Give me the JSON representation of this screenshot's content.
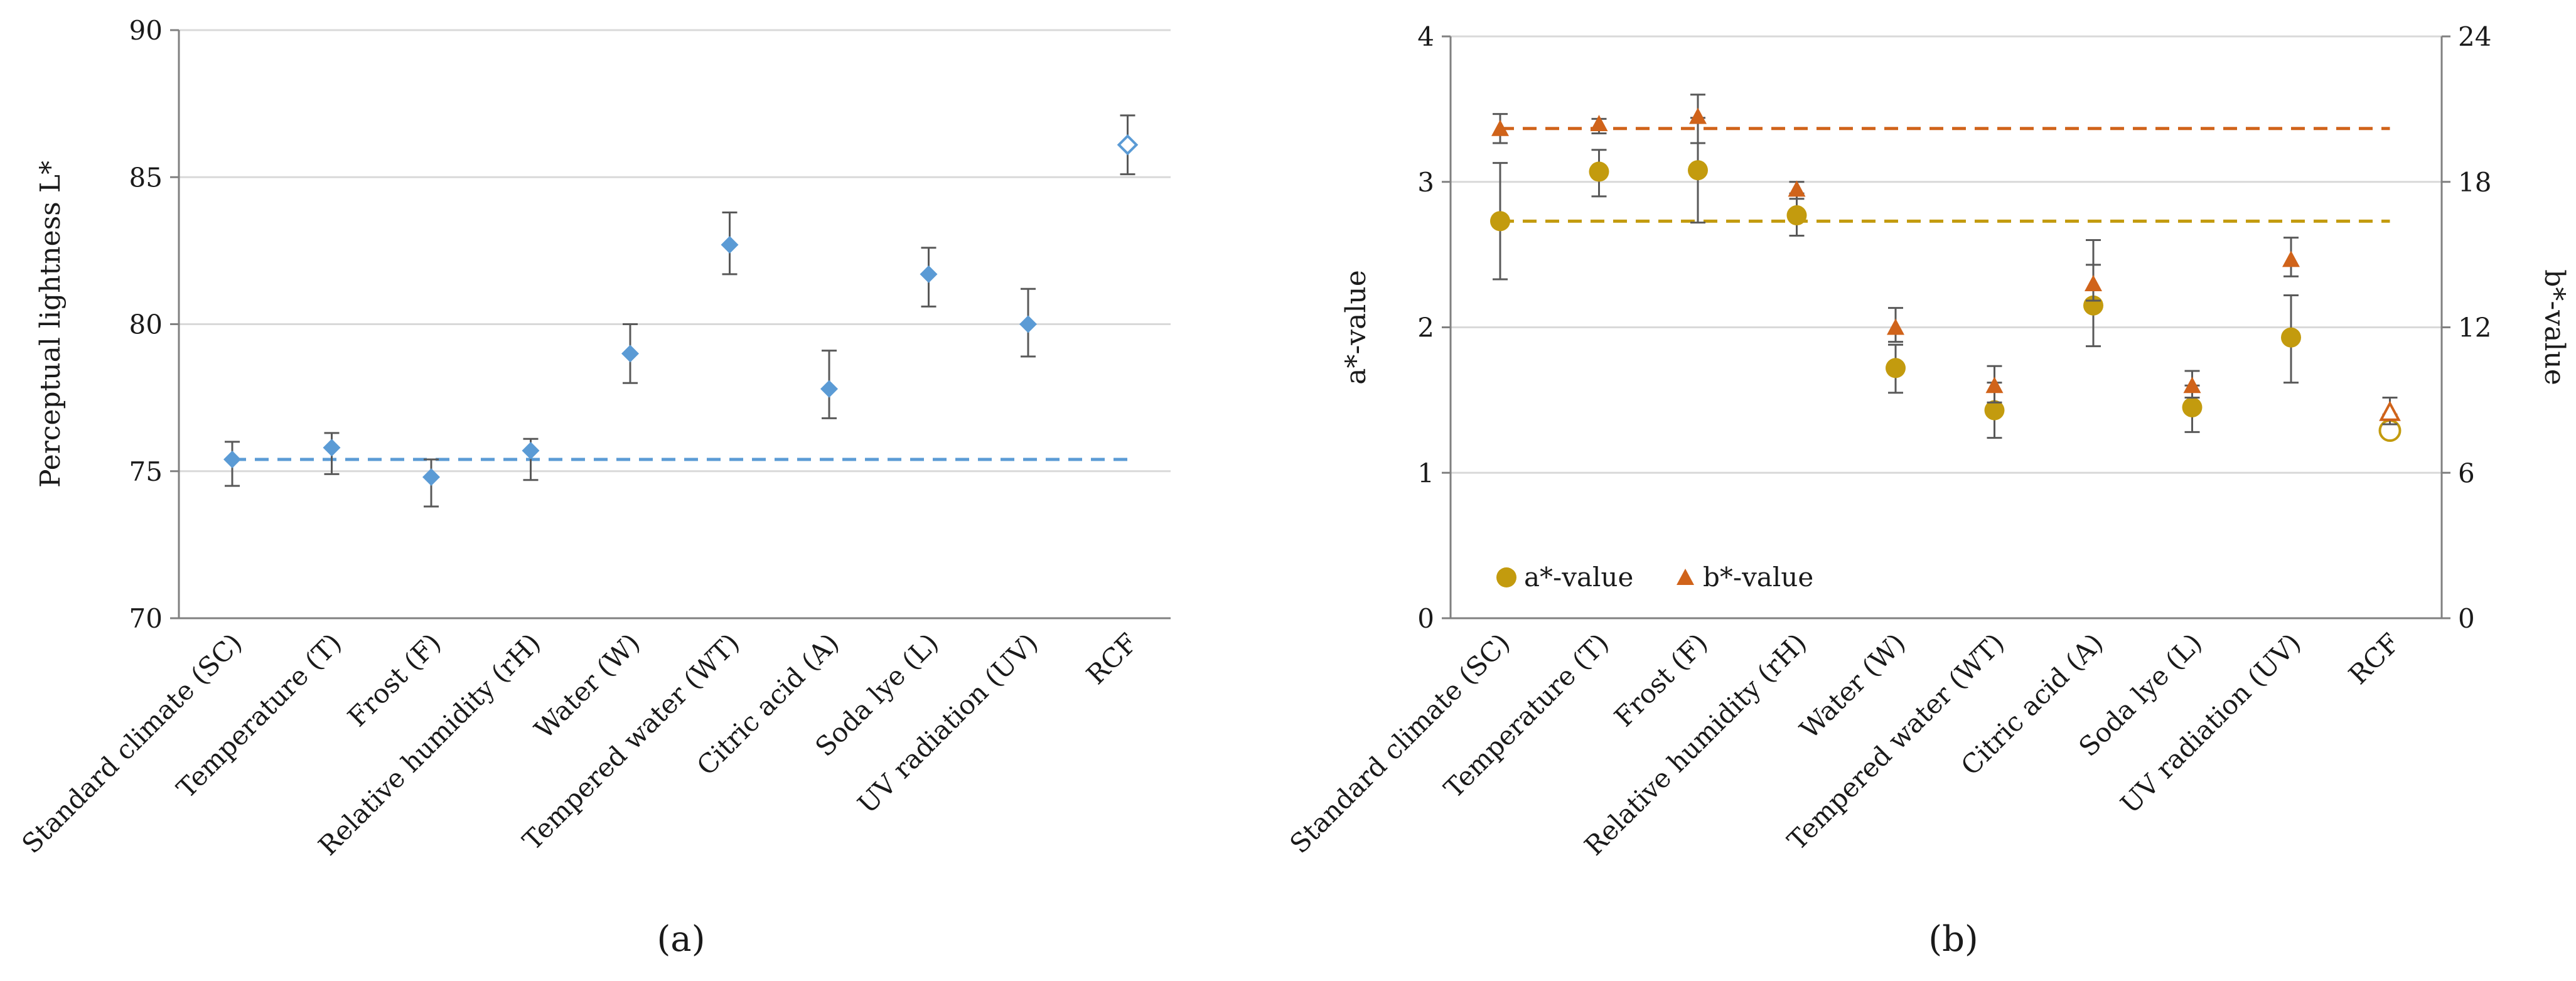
{
  "chart_data": [
    {
      "panel_label": "(a)",
      "type": "scatter",
      "ylabel": "Perceptual lightness L*",
      "ylim": [
        70,
        90
      ],
      "yticks": [
        "70",
        "75",
        "80",
        "85",
        "90"
      ],
      "grid": true,
      "categories": [
        "Standard climate (SC)",
        "Temperature (T)",
        "Frost (F)",
        "Relative humidity (rH)",
        "Water (W)",
        "Tempered water (WT)",
        "Citric acid (A)",
        "Soda lye (L)",
        "UV radiation (UV)",
        "RCF"
      ],
      "series": [
        {
          "name": "L*",
          "color": "#5B9BD5",
          "marker": "diamond",
          "values": [
            75.4,
            75.8,
            74.8,
            75.7,
            79.0,
            82.7,
            77.8,
            81.7,
            80.0,
            86.1
          ],
          "err_low": [
            74.5,
            74.9,
            73.8,
            74.7,
            78.0,
            81.7,
            76.8,
            80.6,
            78.9,
            85.1
          ],
          "err_high": [
            76.0,
            76.3,
            75.4,
            76.1,
            80.0,
            83.8,
            79.1,
            82.6,
            81.2,
            87.1
          ],
          "reference_line": 75.4,
          "last_marker_hollow": true
        }
      ]
    },
    {
      "panel_label": "(b)",
      "type": "scatter",
      "ylabel": "a*-value",
      "ylabel_right": "b*-value",
      "ylim": [
        0,
        4
      ],
      "ylim_right": [
        0,
        24
      ],
      "yticks": [
        "0",
        "1",
        "2",
        "3",
        "4"
      ],
      "yticks_right": [
        "0",
        "6",
        "12",
        "18",
        "24"
      ],
      "grid": true,
      "legend_position": "bottom-left",
      "categories": [
        "Standard climate (SC)",
        "Temperature (T)",
        "Frost (F)",
        "Relative humidity (rH)",
        "Water (W)",
        "Tempered water (WT)",
        "Citric acid (A)",
        "Soda lye (L)",
        "UV radiation (UV)",
        "RCF"
      ],
      "series": [
        {
          "name": "a*-value",
          "axis": "left",
          "color": "#C39B0E",
          "marker": "circle",
          "values": [
            2.73,
            3.07,
            3.08,
            2.77,
            1.72,
            1.43,
            2.15,
            1.45,
            1.93,
            1.29
          ],
          "err_low": [
            2.33,
            2.9,
            2.72,
            2.63,
            1.55,
            1.24,
            1.87,
            1.28,
            1.62,
            1.24
          ],
          "err_high": [
            3.13,
            3.22,
            3.44,
            2.92,
            1.88,
            1.62,
            2.43,
            1.6,
            2.22,
            1.4
          ],
          "reference_line": 2.73,
          "last_marker_hollow": true
        },
        {
          "name": "b*-value",
          "axis": "right",
          "color": "#D0631A",
          "marker": "triangle",
          "values": [
            20.2,
            20.4,
            20.7,
            17.7,
            12.0,
            9.6,
            13.8,
            9.6,
            14.8,
            8.5
          ],
          "err_low": [
            19.6,
            20.0,
            19.6,
            17.3,
            11.4,
            8.9,
            13.1,
            9.1,
            14.1,
            8.0
          ],
          "err_high": [
            20.8,
            20.6,
            21.6,
            18.0,
            12.8,
            10.4,
            15.6,
            10.2,
            15.7,
            9.1
          ],
          "reference_line": 20.2,
          "last_marker_hollow": true
        }
      ]
    }
  ]
}
